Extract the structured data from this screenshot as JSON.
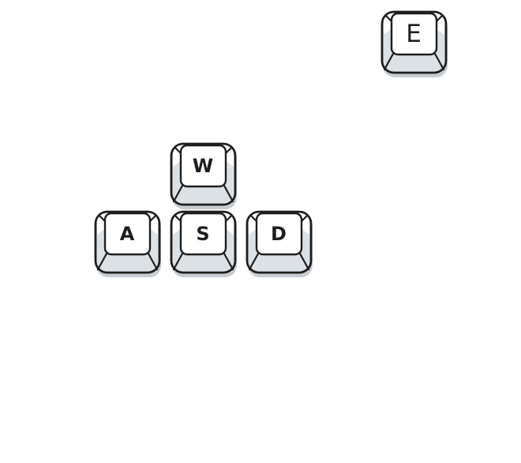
{
  "keys": {
    "w": "W",
    "a": "A",
    "s": "S",
    "d": "D",
    "e": "E"
  },
  "colors": {
    "keycap_outline": "#1e1e1e",
    "keycap_top": "#ffffff",
    "keycap_sides": "#dce1e5",
    "keycap_shadow": "#c7ccd1"
  }
}
